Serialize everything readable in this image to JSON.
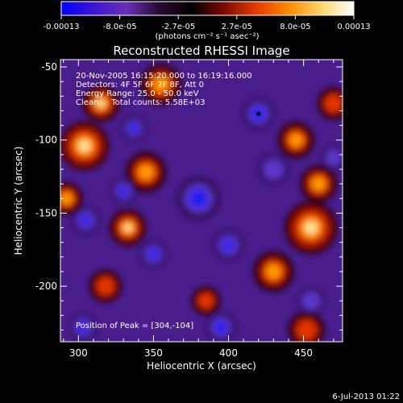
{
  "chart_data": {
    "type": "heatmap",
    "title": "Reconstructed RHESSI Image",
    "xlabel": "Heliocentric X (arcsec)",
    "ylabel": "Heliocentric Y (arcsec)",
    "xlim": [
      288,
      476
    ],
    "ylim": [
      -238,
      -45
    ],
    "xticks": [
      300,
      350,
      400,
      450
    ],
    "yticks": [
      -50,
      -100,
      -150,
      -200
    ],
    "colorbar": {
      "tick_labels": [
        "-0.00013",
        "-8.0e-05",
        "-2.7e-05",
        "2.7e-05",
        "8.0e-05",
        "0.00013"
      ],
      "unit_label": "(photons cm⁻² s⁻¹ asec⁻²)",
      "range": [
        -0.00013,
        0.00013
      ],
      "palette": [
        "#0000ff",
        "#3c14d6",
        "#6a2fb6",
        "#2a0a34",
        "#000000",
        "#7a0a00",
        "#e83a00",
        "#ff8a00",
        "#ffd66a",
        "#ffffff"
      ]
    },
    "annotations": [
      "20-Nov-2005 16:15:20.000 to 16:19:16.000",
      "Detectors: 4F 5F 6F 7F 8F, Att 0",
      "Energy Range: 25.0 - 50.0 keV",
      "Clean     Total counts: 5.58E+03",
      "Position of Peak = [304,-104]"
    ],
    "peak": {
      "x": 304,
      "y": -104
    },
    "sources_bright": [
      [
        304,
        -104,
        1.0,
        12
      ],
      [
        315,
        -75,
        0.7,
        9
      ],
      [
        355,
        -62,
        0.6,
        10
      ],
      [
        333,
        -160,
        0.65,
        9
      ],
      [
        345,
        -122,
        0.55,
        10
      ],
      [
        318,
        -200,
        0.45,
        8
      ],
      [
        455,
        -160,
        0.95,
        13
      ],
      [
        460,
        -130,
        0.6,
        9
      ],
      [
        430,
        -190,
        0.55,
        10
      ],
      [
        445,
        -100,
        0.5,
        9
      ],
      [
        452,
        -230,
        0.45,
        9
      ],
      [
        292,
        -140,
        0.5,
        8
      ],
      [
        470,
        -75,
        0.45,
        8
      ],
      [
        385,
        -210,
        0.35,
        7
      ]
    ],
    "sources_dim": [
      [
        420,
        -82,
        1.0,
        9
      ],
      [
        380,
        -140,
        0.75,
        13
      ],
      [
        330,
        -135,
        0.6,
        8
      ],
      [
        395,
        -228,
        0.8,
        9
      ],
      [
        400,
        -172,
        0.55,
        10
      ],
      [
        350,
        -178,
        0.5,
        9
      ],
      [
        303,
        -228,
        0.55,
        9
      ],
      [
        455,
        -210,
        0.45,
        9
      ],
      [
        337,
        -92,
        0.5,
        8
      ],
      [
        470,
        -112,
        0.45,
        8
      ],
      [
        305,
        -155,
        0.55,
        9
      ],
      [
        430,
        -120,
        0.45,
        10
      ]
    ]
  },
  "footer": {
    "timestamp": "6-Jul-2013 01:22"
  }
}
